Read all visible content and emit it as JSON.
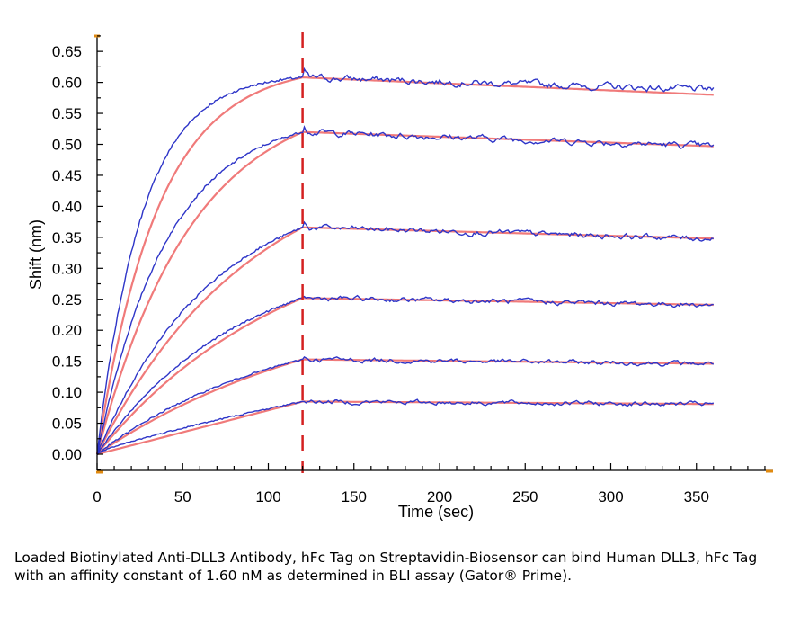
{
  "chart_data": {
    "type": "line",
    "xlabel": "Time (sec)",
    "ylabel": "Shift (nm)",
    "xlim": [
      0,
      395
    ],
    "ylim": [
      -0.02,
      0.68
    ],
    "x_ticks": [
      "0",
      "50",
      "100",
      "150",
      "200",
      "250",
      "300",
      "350"
    ],
    "y_ticks": [
      "0.00",
      "0.05",
      "0.10",
      "0.15",
      "0.20",
      "0.25",
      "0.30",
      "0.35",
      "0.40",
      "0.45",
      "0.50",
      "0.55",
      "0.60",
      "0.65"
    ],
    "association_end_sec": 120,
    "data_end_sec": 360,
    "colors": {
      "measured": "#2e35c8",
      "fit": "#f07a7a",
      "marker_line": "#d42020",
      "axis_tick": "#e08a10"
    },
    "series": [
      {
        "plateau_start": 0.608,
        "end": 0.58,
        "rate": 0.028
      },
      {
        "plateau_start": 0.52,
        "end": 0.497,
        "rate": 0.018
      },
      {
        "plateau_start": 0.366,
        "end": 0.348,
        "rate": 0.011
      },
      {
        "plateau_start": 0.252,
        "end": 0.241,
        "rate": 0.009
      },
      {
        "plateau_start": 0.153,
        "end": 0.146,
        "rate": 0.007
      },
      {
        "plateau_start": 0.085,
        "end": 0.081,
        "rate": 0.0005
      }
    ]
  },
  "caption": "Loaded Biotinylated Anti-DLL3 Antibody, hFc Tag on Streptavidin-Biosensor can bind Human DLL3, hFc Tag with an affinity constant of 1.60 nM as determined in BLI assay (Gator® Prime)."
}
